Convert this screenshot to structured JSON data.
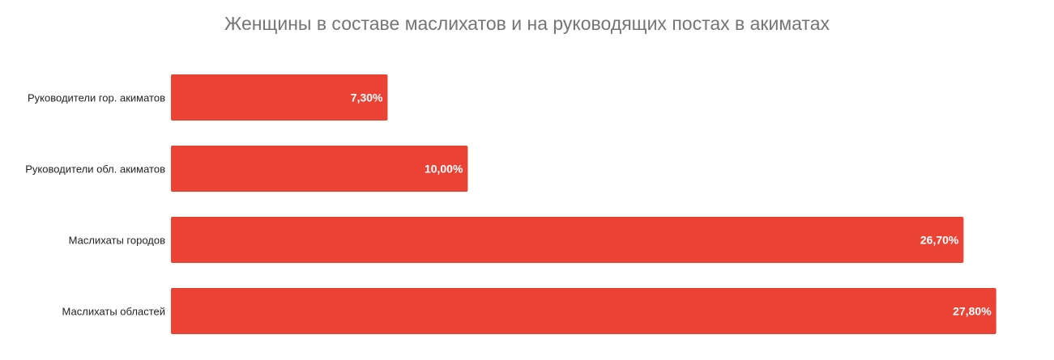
{
  "chart_data": {
    "type": "bar",
    "orientation": "horizontal",
    "title": "Женщины в составе маслихатов и на руководящих постах в акиматах",
    "categories": [
      "Руководители гор. акиматов",
      "Руководители обл. акиматов",
      "Маслихаты городов",
      "Маслихаты областей"
    ],
    "values": [
      7.3,
      10.0,
      26.7,
      27.8
    ],
    "data_labels": [
      "7,30%",
      "10,00%",
      "26,70%",
      "27,80%"
    ],
    "xlim": [
      0,
      28
    ],
    "grid": false,
    "legend": "none",
    "bar_color": "#EA4335"
  }
}
